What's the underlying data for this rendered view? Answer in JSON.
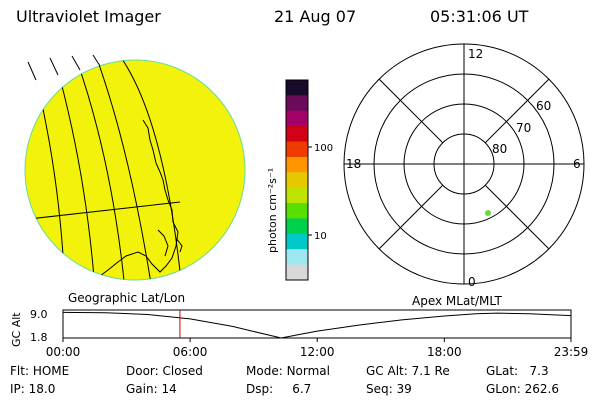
{
  "header": {
    "instrument": "Ultraviolet Imager",
    "date": "21 Aug 07",
    "time": "05:31:06 UT"
  },
  "image_panel": {
    "label": "Geographic Lat/Lon",
    "disk_color": "#f2f20a"
  },
  "colorbar": {
    "unit_label": "photon cm⁻²s⁻¹",
    "ticks": [
      {
        "value": 100,
        "label": "100"
      },
      {
        "value": 10,
        "label": "10"
      }
    ],
    "scale": "log",
    "colors": [
      "#1a0a2a",
      "#6a0a5a",
      "#a3006a",
      "#d10016",
      "#ef3a00",
      "#ff9600",
      "#e7c800",
      "#bfe300",
      "#59de00",
      "#00d14c",
      "#00c9c9",
      "#9ee7f0",
      "#d8d8d8"
    ]
  },
  "polar_panel": {
    "label": "Apex MLat/MLT",
    "mlt_labels": [
      {
        "mlt": 12,
        "label": "12"
      },
      {
        "mlt": 6,
        "label": "6"
      },
      {
        "mlt": 0,
        "label": "0"
      },
      {
        "mlt": 18,
        "label": "18"
      }
    ],
    "lat_labels": [
      {
        "lat": 60,
        "label": "60"
      },
      {
        "lat": 70,
        "label": "70"
      },
      {
        "lat": 80,
        "label": "80"
      }
    ],
    "spacecraft_marker": {
      "mlat": 69,
      "mlt": 1.5,
      "color": "#66dd33"
    }
  },
  "chart_data": {
    "type": "line",
    "title": "",
    "ylabel": "GC Alt",
    "xlabel": "",
    "x_tick_labels": [
      "00:00",
      "06:00",
      "12:00",
      "18:00",
      "23:59"
    ],
    "y_tick_labels": [
      "9.0",
      "1.8"
    ],
    "ylim": [
      1.8,
      9.0
    ],
    "xlim": [
      0,
      23.98
    ],
    "series": [
      {
        "x": [
          0,
          2,
          4,
          6,
          8,
          9,
          10.3,
          11,
          12,
          14,
          16,
          18,
          19.5,
          20.5,
          22,
          23.98
        ],
        "y": [
          8.9,
          8.8,
          8.3,
          7.1,
          5.0,
          3.6,
          1.8,
          2.6,
          3.7,
          5.4,
          6.8,
          7.9,
          8.5,
          8.7,
          8.5,
          8.0
        ]
      }
    ],
    "current_time_marker": {
      "x": 5.52,
      "color": "#cc0000"
    }
  },
  "status": {
    "row1": [
      {
        "label": "Flt:",
        "value": "HOME"
      },
      {
        "label": "Door:",
        "value": "Closed"
      },
      {
        "label": "Mode:",
        "value": "Normal"
      },
      {
        "label": "GC Alt:",
        "value": "7.1 Re"
      },
      {
        "label": "GLat:",
        "value": "7.3"
      }
    ],
    "row2": [
      {
        "label": "IP:",
        "value": "18.0"
      },
      {
        "label": "Gain:",
        "value": "14"
      },
      {
        "label": "Dsp:",
        "value": "6.7"
      },
      {
        "label": "Seq:",
        "value": "39"
      },
      {
        "label": "GLon:",
        "value": "262.6"
      }
    ]
  }
}
